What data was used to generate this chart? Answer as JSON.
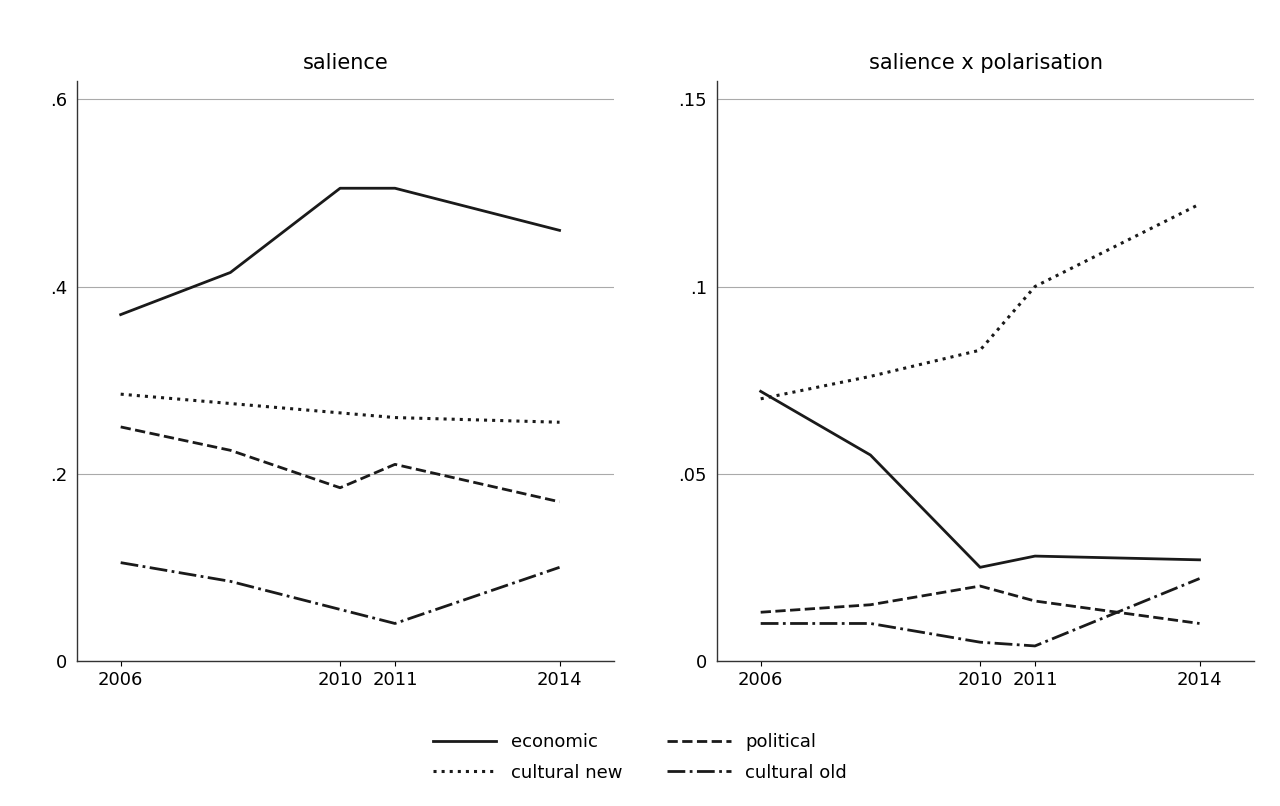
{
  "years": [
    2006,
    2008,
    2010,
    2011,
    2014
  ],
  "salience": {
    "economic": [
      0.37,
      0.415,
      0.505,
      0.505,
      0.46
    ],
    "cultural_new": [
      0.285,
      0.275,
      0.265,
      0.26,
      0.255
    ],
    "political": [
      0.25,
      0.225,
      0.185,
      0.21,
      0.17
    ],
    "cultural_old": [
      0.105,
      0.085,
      0.055,
      0.04,
      0.1
    ]
  },
  "salience_x_polarisation": {
    "economic": [
      0.072,
      0.055,
      0.025,
      0.028,
      0.027
    ],
    "cultural_new": [
      0.07,
      0.076,
      0.083,
      0.1,
      0.122
    ],
    "political": [
      0.013,
      0.015,
      0.02,
      0.016,
      0.01
    ],
    "cultural_old": [
      0.01,
      0.01,
      0.005,
      0.004,
      0.022
    ]
  },
  "salience_ylim": [
    0,
    0.62
  ],
  "salience_yticks": [
    0,
    0.2,
    0.4,
    0.6
  ],
  "salience_yticklabels": [
    "0",
    ".2",
    ".4",
    ".6"
  ],
  "sxp_ylim": [
    0,
    0.155
  ],
  "sxp_yticks": [
    0,
    0.05,
    0.1,
    0.15
  ],
  "sxp_yticklabels": [
    "0",
    ".05",
    ".1",
    ".15"
  ],
  "xticks": [
    2006,
    2010,
    2011,
    2014
  ],
  "xticklabels": [
    "2006",
    "2010",
    "2011",
    "2014"
  ],
  "title_left": "salience",
  "title_right": "salience x polarisation",
  "line_styles": {
    "economic": {
      "linestyle": "-",
      "linewidth": 2.0,
      "color": "#1a1a1a"
    },
    "cultural_new": {
      "linestyle": ":",
      "linewidth": 2.2,
      "color": "#1a1a1a"
    },
    "political": {
      "linestyle": "--",
      "linewidth": 2.0,
      "color": "#1a1a1a"
    },
    "cultural_old": {
      "linestyle": "-.",
      "linewidth": 2.0,
      "color": "#1a1a1a"
    }
  },
  "background_color": "#ffffff",
  "grid_color": "#aaaaaa",
  "title_fontsize": 15,
  "tick_fontsize": 13,
  "legend_fontsize": 13,
  "spine_color": "#333333"
}
